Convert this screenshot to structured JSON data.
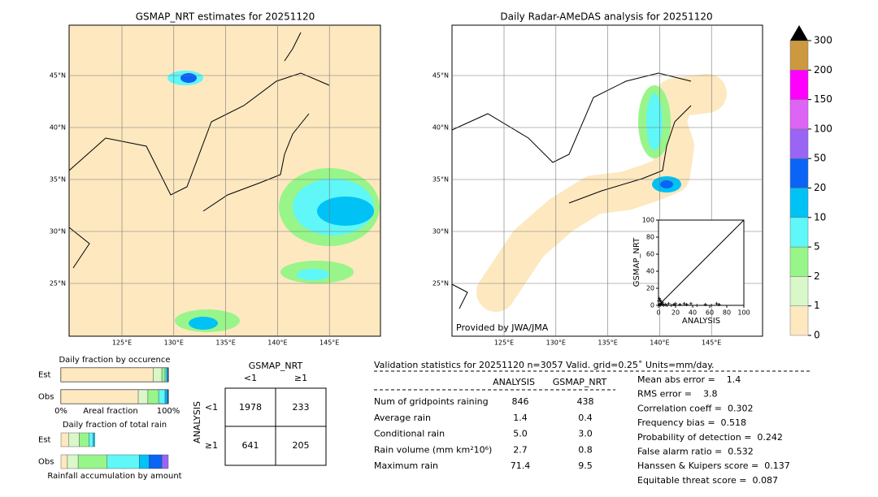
{
  "chart_data": [
    {
      "type": "colorbar",
      "ticks": [
        0,
        1,
        2,
        5,
        10,
        20,
        50,
        100,
        150,
        200,
        300
      ],
      "colors": [
        "#fde8c0",
        "#d9f7c8",
        "#98f58a",
        "#5ff7f7",
        "#00c2f5",
        "#0a64f5",
        "#9a64f5",
        "#dd64f5",
        "#ff00ff",
        "#cc9940"
      ],
      "extend_color": "#000000"
    },
    {
      "type": "scatter",
      "xlabel": "ANALYSIS",
      "ylabel": "GSMAP_NRT",
      "xlim": [
        0,
        100
      ],
      "ylim": [
        0,
        100
      ],
      "xticks": [
        0,
        20,
        40,
        60,
        80,
        100
      ],
      "yticks": [
        0,
        20,
        40,
        60,
        80,
        100
      ],
      "color": "#000000",
      "x": [
        1,
        2,
        3,
        4,
        5,
        6,
        8,
        10,
        12,
        15,
        18,
        20,
        25,
        30,
        33,
        38,
        45,
        55,
        62,
        68,
        71,
        0,
        1,
        3,
        2
      ],
      "values": [
        1,
        0,
        2,
        1,
        3,
        0,
        1,
        0,
        2,
        0,
        1,
        2,
        1,
        2,
        1,
        2,
        0,
        1,
        0,
        2,
        1,
        5,
        8,
        4,
        6
      ]
    },
    {
      "type": "hbar_stacked",
      "title": "Daily fraction by occurence",
      "xlabel": "Areal fraction",
      "categories": [
        "Est",
        "Obs"
      ],
      "xlim": [
        0,
        100
      ],
      "xticks": [
        {
          "value": 0,
          "label": "0%"
        },
        {
          "value": 100,
          "label": "100%"
        }
      ],
      "series": [
        {
          "color": "#fde8c0",
          "values": [
            86,
            72
          ]
        },
        {
          "color": "#d9f7c8",
          "values": [
            8,
            9
          ]
        },
        {
          "color": "#98f58a",
          "values": [
            3,
            10
          ]
        },
        {
          "color": "#5ff7f7",
          "values": [
            1.5,
            6
          ]
        },
        {
          "color": "#00c2f5",
          "values": [
            1,
            2
          ]
        },
        {
          "color": "#0a64f5",
          "values": [
            0.5,
            1
          ]
        }
      ]
    },
    {
      "type": "hbar_stacked",
      "title": "Daily fraction of total rain",
      "xlabel": "Rainfall accumulation by amount",
      "categories": [
        "Est",
        "Obs"
      ],
      "xlim": [
        0,
        100
      ],
      "series": [
        {
          "color": "#fde8c0",
          "values": [
            7,
            6
          ]
        },
        {
          "color": "#d9f7c8",
          "values": [
            10,
            10
          ]
        },
        {
          "color": "#98f58a",
          "values": [
            9,
            27
          ]
        },
        {
          "color": "#5ff7f7",
          "values": [
            4,
            30
          ]
        },
        {
          "color": "#00c2f5",
          "values": [
            1.5,
            9
          ]
        },
        {
          "color": "#0a64f5",
          "values": [
            0,
            12
          ]
        },
        {
          "color": "#9a64f5",
          "values": [
            0,
            6
          ]
        }
      ]
    }
  ],
  "maps": {
    "left_title": "GSMAP_NRT estimates for 20251120",
    "right_title": "Daily Radar-AMeDAS analysis for 20251120",
    "lat_labels": [
      "45°N",
      "40°N",
      "35°N",
      "30°N",
      "25°N"
    ],
    "lon_labels": [
      "125°E",
      "130°E",
      "135°E",
      "140°E",
      "145°E"
    ],
    "credit": "Provided by JWA/JMA"
  },
  "contingency": {
    "title": "GSMAP_NRT",
    "columns": [
      "<1",
      "≥1"
    ],
    "row_title": "ANALYSIS",
    "rows": [
      "<1",
      "≥1"
    ],
    "cells": [
      [
        "1978",
        "233"
      ],
      [
        "641",
        "205"
      ]
    ]
  },
  "stats": {
    "header": "Validation statistics for 20251120  n=3057 Valid. grid=0.25˚ Units=mm/day.",
    "columns": [
      "ANALYSIS",
      "GSMAP_NRT"
    ],
    "rows": [
      [
        "Num of gridpoints raining",
        "846",
        "438"
      ],
      [
        "Average rain",
        "1.4",
        "0.4"
      ],
      [
        "Conditional rain",
        "5.0",
        "3.0"
      ],
      [
        "Rain volume (mm km²10⁶)",
        "2.7",
        "0.8"
      ],
      [
        "Maximum rain",
        "71.4",
        "9.5"
      ]
    ],
    "scores": [
      "Mean abs error =    1.4",
      "RMS error =    3.8",
      "Correlation coeff =  0.302",
      "Frequency bias =  0.518",
      "Probability of detection =  0.242",
      "False alarm ratio =  0.532",
      "Hanssen & Kuipers score =  0.137",
      "Equitable threat score =  0.087"
    ]
  }
}
